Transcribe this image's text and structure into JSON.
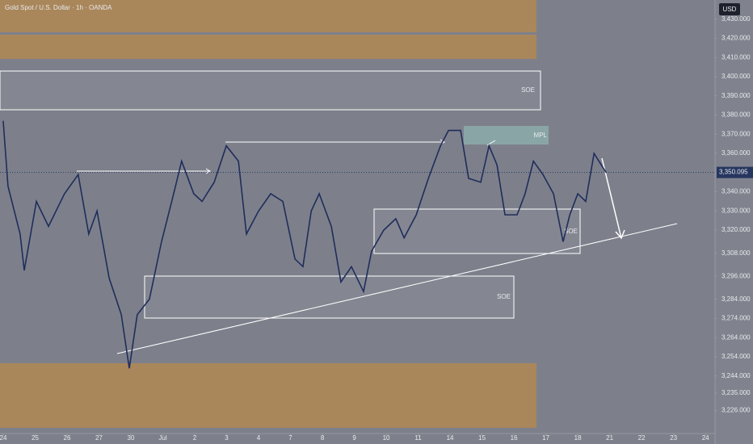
{
  "chart_data": {
    "type": "line",
    "title": "Gold Spot / U.S. Dollar · 1h · OANDA",
    "currency": "USD",
    "xlim": [
      -0.1,
      22.3
    ],
    "xticks": [
      {
        "value": 0,
        "label": "24"
      },
      {
        "value": 1,
        "label": "25"
      },
      {
        "value": 2,
        "label": "26"
      },
      {
        "value": 3,
        "label": "27"
      },
      {
        "value": 4,
        "label": "30"
      },
      {
        "value": 5,
        "label": "Jul"
      },
      {
        "value": 6,
        "label": "2"
      },
      {
        "value": 7,
        "label": "3"
      },
      {
        "value": 8,
        "label": "4"
      },
      {
        "value": 9,
        "label": "7"
      },
      {
        "value": 10,
        "label": "8"
      },
      {
        "value": 11,
        "label": "9"
      },
      {
        "value": 12,
        "label": "10"
      },
      {
        "value": 13,
        "label": "11"
      },
      {
        "value": 14,
        "label": "14"
      },
      {
        "value": 15,
        "label": "15"
      },
      {
        "value": 16,
        "label": "16"
      },
      {
        "value": 17,
        "label": "17"
      },
      {
        "value": 18,
        "label": "18"
      },
      {
        "value": 19,
        "label": "21"
      },
      {
        "value": 20,
        "label": "22"
      },
      {
        "value": 21,
        "label": "23"
      },
      {
        "value": 22,
        "label": "24"
      }
    ],
    "ylim": [
      3214,
      3440
    ],
    "yticks": [
      {
        "value": 3430,
        "label": "3,430.000"
      },
      {
        "value": 3420,
        "label": "3,420.000"
      },
      {
        "value": 3410,
        "label": "3,410.000"
      },
      {
        "value": 3400,
        "label": "3,400.000"
      },
      {
        "value": 3390,
        "label": "3,390.000"
      },
      {
        "value": 3380,
        "label": "3,380.000"
      },
      {
        "value": 3370,
        "label": "3,370.000"
      },
      {
        "value": 3360,
        "label": "3,360.000"
      },
      {
        "value": 3340,
        "label": "3,340.000"
      },
      {
        "value": 3330,
        "label": "3,330.000"
      },
      {
        "value": 3320,
        "label": "3,320.000"
      },
      {
        "value": 3308,
        "label": "3,308.000"
      },
      {
        "value": 3296,
        "label": "3,296.000"
      },
      {
        "value": 3284,
        "label": "3,284.000"
      },
      {
        "value": 3274,
        "label": "3,274.000"
      },
      {
        "value": 3264,
        "label": "3,264.000"
      },
      {
        "value": 3254,
        "label": "3,254.000"
      },
      {
        "value": 3244,
        "label": "3,244.000"
      },
      {
        "value": 3235,
        "label": "3,235.000"
      },
      {
        "value": 3226,
        "label": "3,226.000"
      }
    ],
    "last_price": {
      "value": 3350.095,
      "label": "3,350.095"
    },
    "series": [
      {
        "color": "#1f2d5c",
        "x": [
          0,
          0.15,
          0.53,
          0.66,
          1.04,
          1.42,
          1.92,
          2.35,
          2.68,
          2.94,
          3.32,
          3.7,
          3.95,
          4.2,
          4.58,
          4.96,
          5.34,
          5.59,
          5.97,
          6.23,
          6.61,
          6.99,
          7.37,
          7.62,
          8.0,
          8.38,
          8.76,
          9.14,
          9.39,
          9.65,
          9.9,
          10.28,
          10.58,
          10.91,
          11.29,
          11.54,
          11.92,
          12.3,
          12.56,
          12.94,
          13.32,
          13.7,
          13.95,
          14.33,
          14.58,
          14.96,
          15.22,
          15.47,
          15.72,
          16.1,
          16.35,
          16.61,
          16.91,
          17.24,
          17.54,
          17.75,
          18.0,
          18.25,
          18.51,
          18.89
        ],
        "values": [
          3377,
          3343,
          3318,
          3299,
          3335,
          3322,
          3339,
          3349,
          3318,
          3330,
          3295,
          3276,
          3248,
          3276,
          3284,
          3314,
          3339,
          3356,
          3339,
          3335,
          3345,
          3364,
          3356,
          3318,
          3330,
          3339,
          3335,
          3305,
          3301,
          3330,
          3339,
          3322,
          3293,
          3301,
          3288,
          3309,
          3320,
          3326,
          3316,
          3328,
          3347,
          3364,
          3372,
          3372,
          3347,
          3345,
          3364,
          3354,
          3328,
          3328,
          3339,
          3356,
          3349,
          3339,
          3314,
          3328,
          3339,
          3335,
          3360,
          3350
        ]
      }
    ],
    "annotations": [
      "SOE",
      "SOE",
      "SOE",
      "MPL"
    ]
  }
}
